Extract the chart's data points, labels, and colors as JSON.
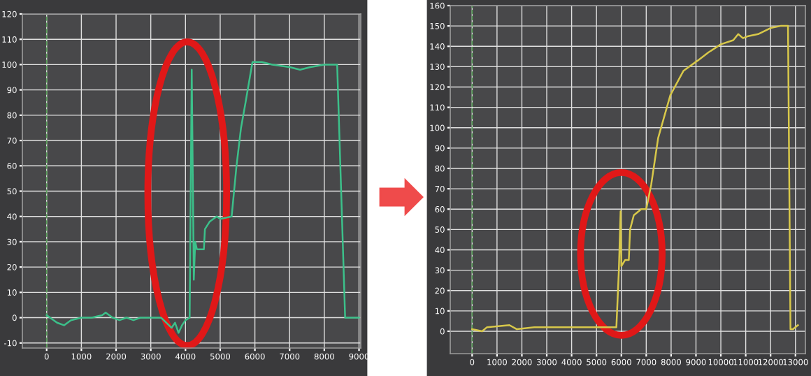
{
  "chart_data": [
    {
      "type": "line",
      "xlim": [
        -700,
        9050
      ],
      "ylim": [
        -12,
        120
      ],
      "xticks": [
        0,
        1000,
        2000,
        3000,
        4000,
        5000,
        6000,
        7000,
        8000,
        9000
      ],
      "yticks": [
        -10,
        0,
        10,
        20,
        30,
        40,
        50,
        60,
        70,
        80,
        90,
        100,
        110,
        120
      ],
      "grid": true,
      "legend": false,
      "marker": "none",
      "line_style": "solid",
      "ref_lines": [
        {
          "axis": "x",
          "value": 0,
          "color": "#5aa05a",
          "line_style": "dashed"
        }
      ],
      "series": [
        {
          "color": "#3cc08a",
          "x": [
            0,
            300,
            500,
            700,
            1000,
            1300,
            1600,
            1700,
            1900,
            2100,
            2300,
            2500,
            2700,
            3000,
            3300,
            3450,
            3600,
            3700,
            3800,
            3900,
            4000,
            4120,
            4180,
            4240,
            4280,
            4330,
            4530,
            4560,
            4700,
            4900,
            5000,
            5330,
            5470,
            5600,
            5730,
            5930,
            6200,
            6500,
            7000,
            7300,
            7600,
            8000,
            8370,
            8600,
            8800,
            9000
          ],
          "values": [
            1,
            -2,
            -3,
            -1,
            0,
            0,
            1,
            2,
            0,
            -1,
            0,
            -1,
            0,
            0,
            0,
            -2,
            -4,
            -2,
            -6,
            -3,
            -1,
            0,
            98,
            15,
            30,
            27,
            27,
            35,
            38,
            40,
            39,
            40,
            60,
            75,
            85,
            101,
            101,
            100,
            99,
            98,
            99,
            100,
            100,
            0,
            0,
            0
          ]
        }
      ]
    },
    {
      "type": "line",
      "xlim": [
        -880,
        13400
      ],
      "ylim": [
        -11,
        160
      ],
      "xticks": [
        0,
        1000,
        2000,
        3000,
        4000,
        5000,
        6000,
        7000,
        8000,
        9000,
        10000,
        11000,
        12000,
        13000
      ],
      "yticks": [
        0,
        10,
        20,
        30,
        40,
        50,
        60,
        70,
        80,
        90,
        100,
        110,
        120,
        130,
        140,
        150,
        160
      ],
      "grid": true,
      "legend": false,
      "marker": "none",
      "line_style": "solid",
      "ref_lines": [
        {
          "axis": "x",
          "value": 0,
          "color": "#5aa05a",
          "line_style": "dashed"
        }
      ],
      "series": [
        {
          "color": "#d8c84a",
          "x": [
            0,
            400,
            600,
            1500,
            1800,
            2500,
            3500,
            5000,
            5800,
            5900,
            5970,
            6000,
            6150,
            6300,
            6350,
            6500,
            6800,
            7000,
            7200,
            7480,
            7970,
            8500,
            9070,
            9500,
            10000,
            10500,
            10700,
            10890,
            11100,
            11500,
            12000,
            12400,
            12700,
            12800,
            12900,
            13100
          ],
          "values": [
            1,
            0,
            2,
            3,
            1,
            2,
            2,
            2,
            2,
            30,
            59,
            32,
            35,
            35,
            50,
            57,
            60,
            60,
            72,
            95,
            116,
            128,
            133,
            137,
            141,
            143,
            146,
            144,
            145,
            146,
            149,
            150,
            150,
            1,
            1,
            3
          ]
        }
      ]
    }
  ]
}
